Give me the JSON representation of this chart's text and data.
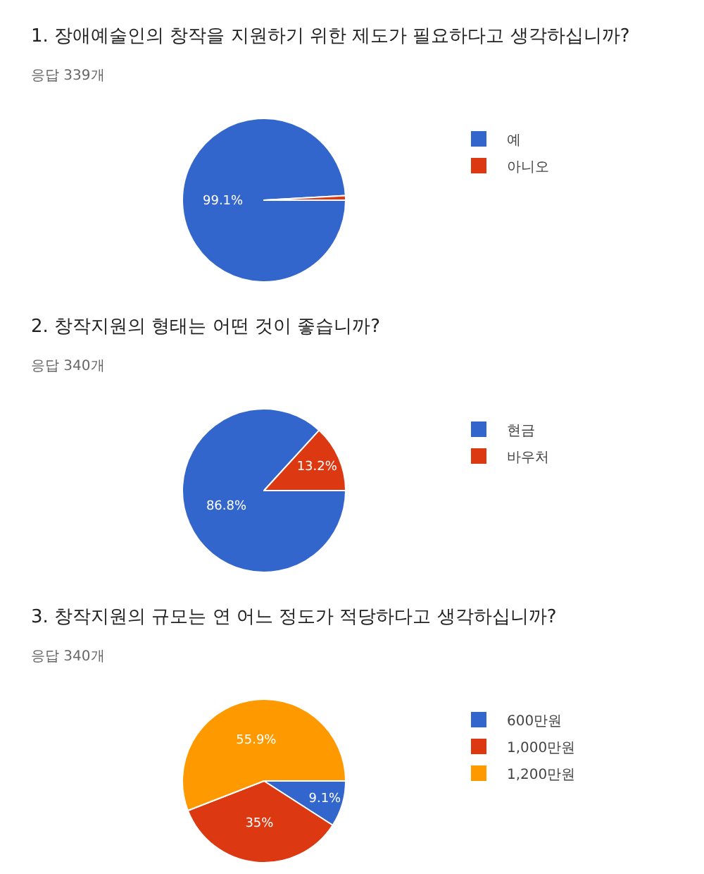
{
  "chart_data": [
    {
      "type": "pie",
      "title": "1. 장애예술인의 창작을 지원하기 위한 제도가 필요하다고 생각하십니까?",
      "subtitle": "응답 339개",
      "categories": [
        "예",
        "아니오"
      ],
      "values": [
        99.1,
        0.9
      ],
      "colors": [
        "#3366cc",
        "#dc3912"
      ],
      "value_labels": [
        "99.1%",
        null
      ],
      "legend": "top right"
    },
    {
      "type": "pie",
      "title": "2. 창작지원의 형태는 어떤 것이 좋습니까?",
      "subtitle": "응답 340개",
      "categories": [
        "현금",
        "바우처"
      ],
      "values": [
        86.8,
        13.2
      ],
      "colors": [
        "#3366cc",
        "#dc3912"
      ],
      "value_labels": [
        "86.8%",
        "13.2%"
      ],
      "legend": "top right"
    },
    {
      "type": "pie",
      "title": "3. 창작지원의 규모는 연 어느 정도가 적당하다고 생각하십니까?",
      "subtitle": "응답 340개",
      "categories": [
        "600만원",
        "1,000만원",
        "1,200만원"
      ],
      "values": [
        9.1,
        35,
        55.9
      ],
      "colors": [
        "#3366cc",
        "#dc3912",
        "#ff9900"
      ],
      "value_labels": [
        "9.1%",
        "35%",
        "55.9%"
      ],
      "legend": "top right"
    }
  ]
}
